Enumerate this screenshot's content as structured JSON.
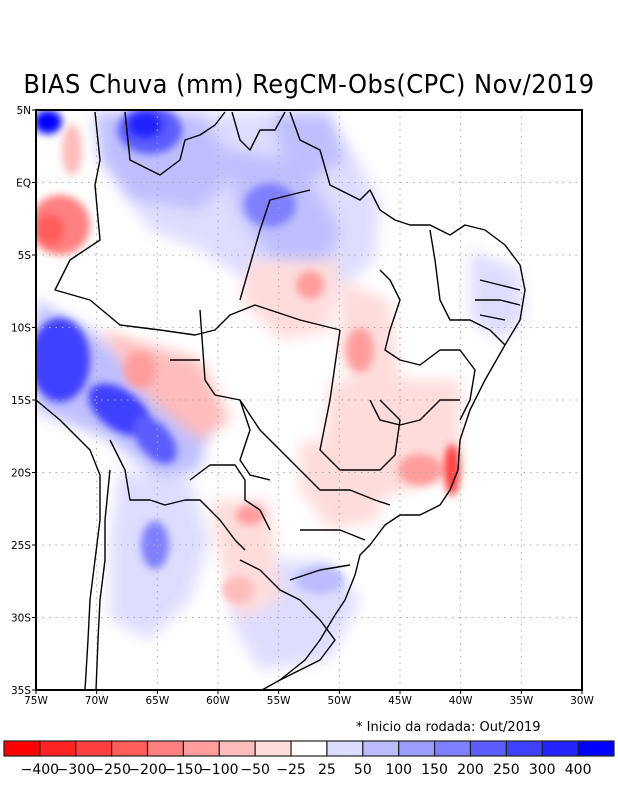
{
  "title": "BIAS Chuva (mm) RegCM-Obs(CPC) Nov/2019",
  "footnote": "* Inicio da rodada: Out/2019",
  "map": {
    "region": "Brazil / South America",
    "variable": "Precipitation bias (mm)",
    "lon_range": [
      -75,
      -30
    ],
    "lat_range": [
      -35,
      5
    ],
    "lon_ticks": [
      "75W",
      "70W",
      "65W",
      "60W",
      "55W",
      "50W",
      "45W",
      "40W",
      "35W",
      "30W"
    ],
    "lat_ticks": [
      "5N",
      "EQ",
      "5S",
      "10S",
      "15S",
      "20S",
      "25S",
      "30S",
      "35S"
    ],
    "gridlines": "dotted"
  },
  "colorbar": {
    "labels": [
      "-400",
      "-300",
      "-250",
      "-200",
      "-150",
      "-100",
      "-50",
      "-25",
      "25",
      "50",
      "100",
      "150",
      "200",
      "250",
      "300",
      "400"
    ],
    "colors": [
      "#ff0000",
      "#ff2424",
      "#ff4040",
      "#ff5c5c",
      "#ff8080",
      "#ff9c9c",
      "#ffbcbc",
      "#ffdcdc",
      "#ffffff",
      "#dcdcff",
      "#bcbcff",
      "#9c9cff",
      "#8080ff",
      "#5c5cff",
      "#4040ff",
      "#2424ff",
      "#0000ff"
    ]
  },
  "chart_data": {
    "type": "heatmap",
    "title": "BIAS Chuva (mm) RegCM-Obs(CPC) Nov/2019",
    "xlabel": "",
    "ylabel": "",
    "xlim": [
      -75,
      -30
    ],
    "ylim": [
      -35,
      5
    ],
    "levels": [
      -400,
      -300,
      -250,
      -200,
      -150,
      -100,
      -50,
      -25,
      25,
      50,
      100,
      150,
      200,
      250,
      300,
      400
    ],
    "features": [
      {
        "name": "Andes Bolivia/Peru wet bias",
        "lon": -68,
        "lat": -14,
        "value": 350
      },
      {
        "name": "NW Amazon wet bias",
        "lon": -64,
        "lat": 3,
        "value": 300
      },
      {
        "name": "Colombia/Peru border dry bias",
        "lon": -74,
        "lat": -3,
        "value": -250
      },
      {
        "name": "Northern Argentina wet bias",
        "lon": -65,
        "lat": -25,
        "value": 175
      },
      {
        "name": "Para wet bias",
        "lon": -55,
        "lat": 0,
        "value": 150
      },
      {
        "name": "Espirito Santo dry bias",
        "lon": -41,
        "lat": -20,
        "value": -250
      },
      {
        "name": "Bahia/Minas dry bias",
        "lon": -45,
        "lat": -15,
        "value": -125
      },
      {
        "name": "Tocantins dry bias",
        "lon": -48,
        "lat": -11,
        "value": -125
      },
      {
        "name": "Mato Grosso dry bias",
        "lon": -64,
        "lat": -15,
        "value": -100
      },
      {
        "name": "Rio Grande do Sul wet bias",
        "lon": -54,
        "lat": -29,
        "value": 75
      },
      {
        "name": "Northeast coast wet bias",
        "lon": -36,
        "lat": -7,
        "value": 60
      },
      {
        "name": "Parana/Paraguay dry bias",
        "lon": -55,
        "lat": -26,
        "value": -75
      }
    ]
  }
}
